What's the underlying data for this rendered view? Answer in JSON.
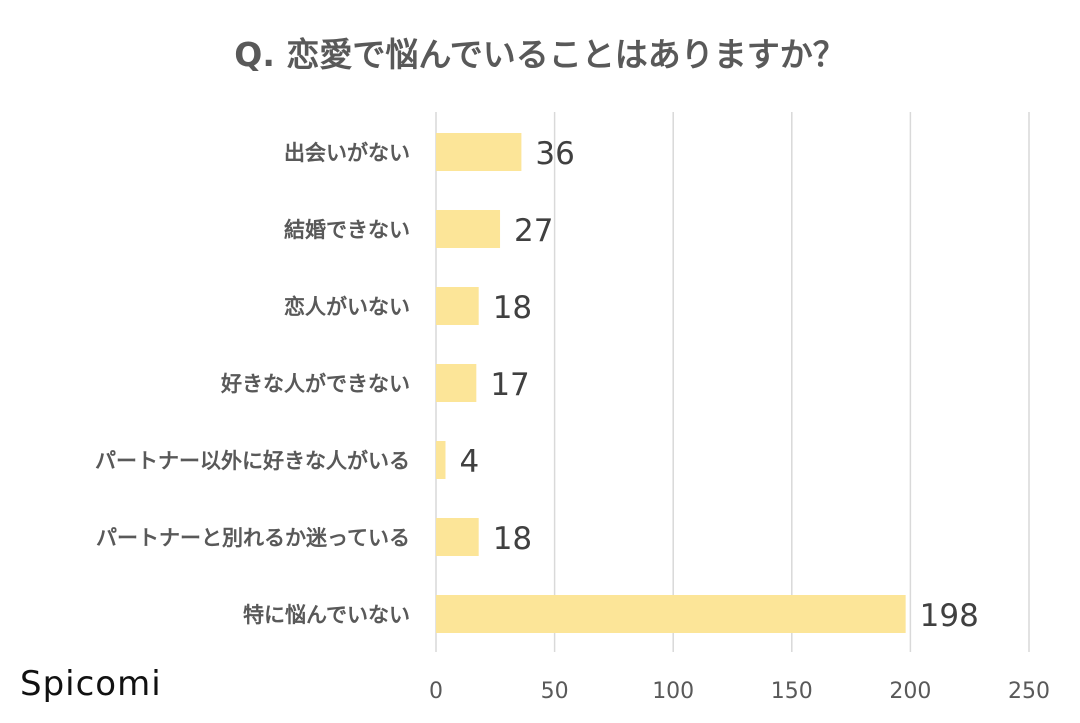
{
  "chart_data": {
    "type": "bar",
    "orientation": "horizontal",
    "title": "Q. 恋愛で悩んでいることはありますか？",
    "categories": [
      "出会いがない",
      "結婚できない",
      "恋人がいない",
      "好きな人ができない",
      "パートナー以外に好きな人がいる",
      "パートナーと別れるか迷っている",
      "特に悩んでいない"
    ],
    "values": [
      36,
      27,
      18,
      17,
      4,
      18,
      198
    ],
    "xlim": [
      0,
      250
    ],
    "ticks": [
      0,
      50,
      100,
      150,
      200,
      250
    ],
    "grid": true,
    "data_labels": true,
    "bar_color": "#FCE598",
    "grid_color": "#D9D9D9"
  },
  "branding": {
    "text": "Spicomi"
  }
}
